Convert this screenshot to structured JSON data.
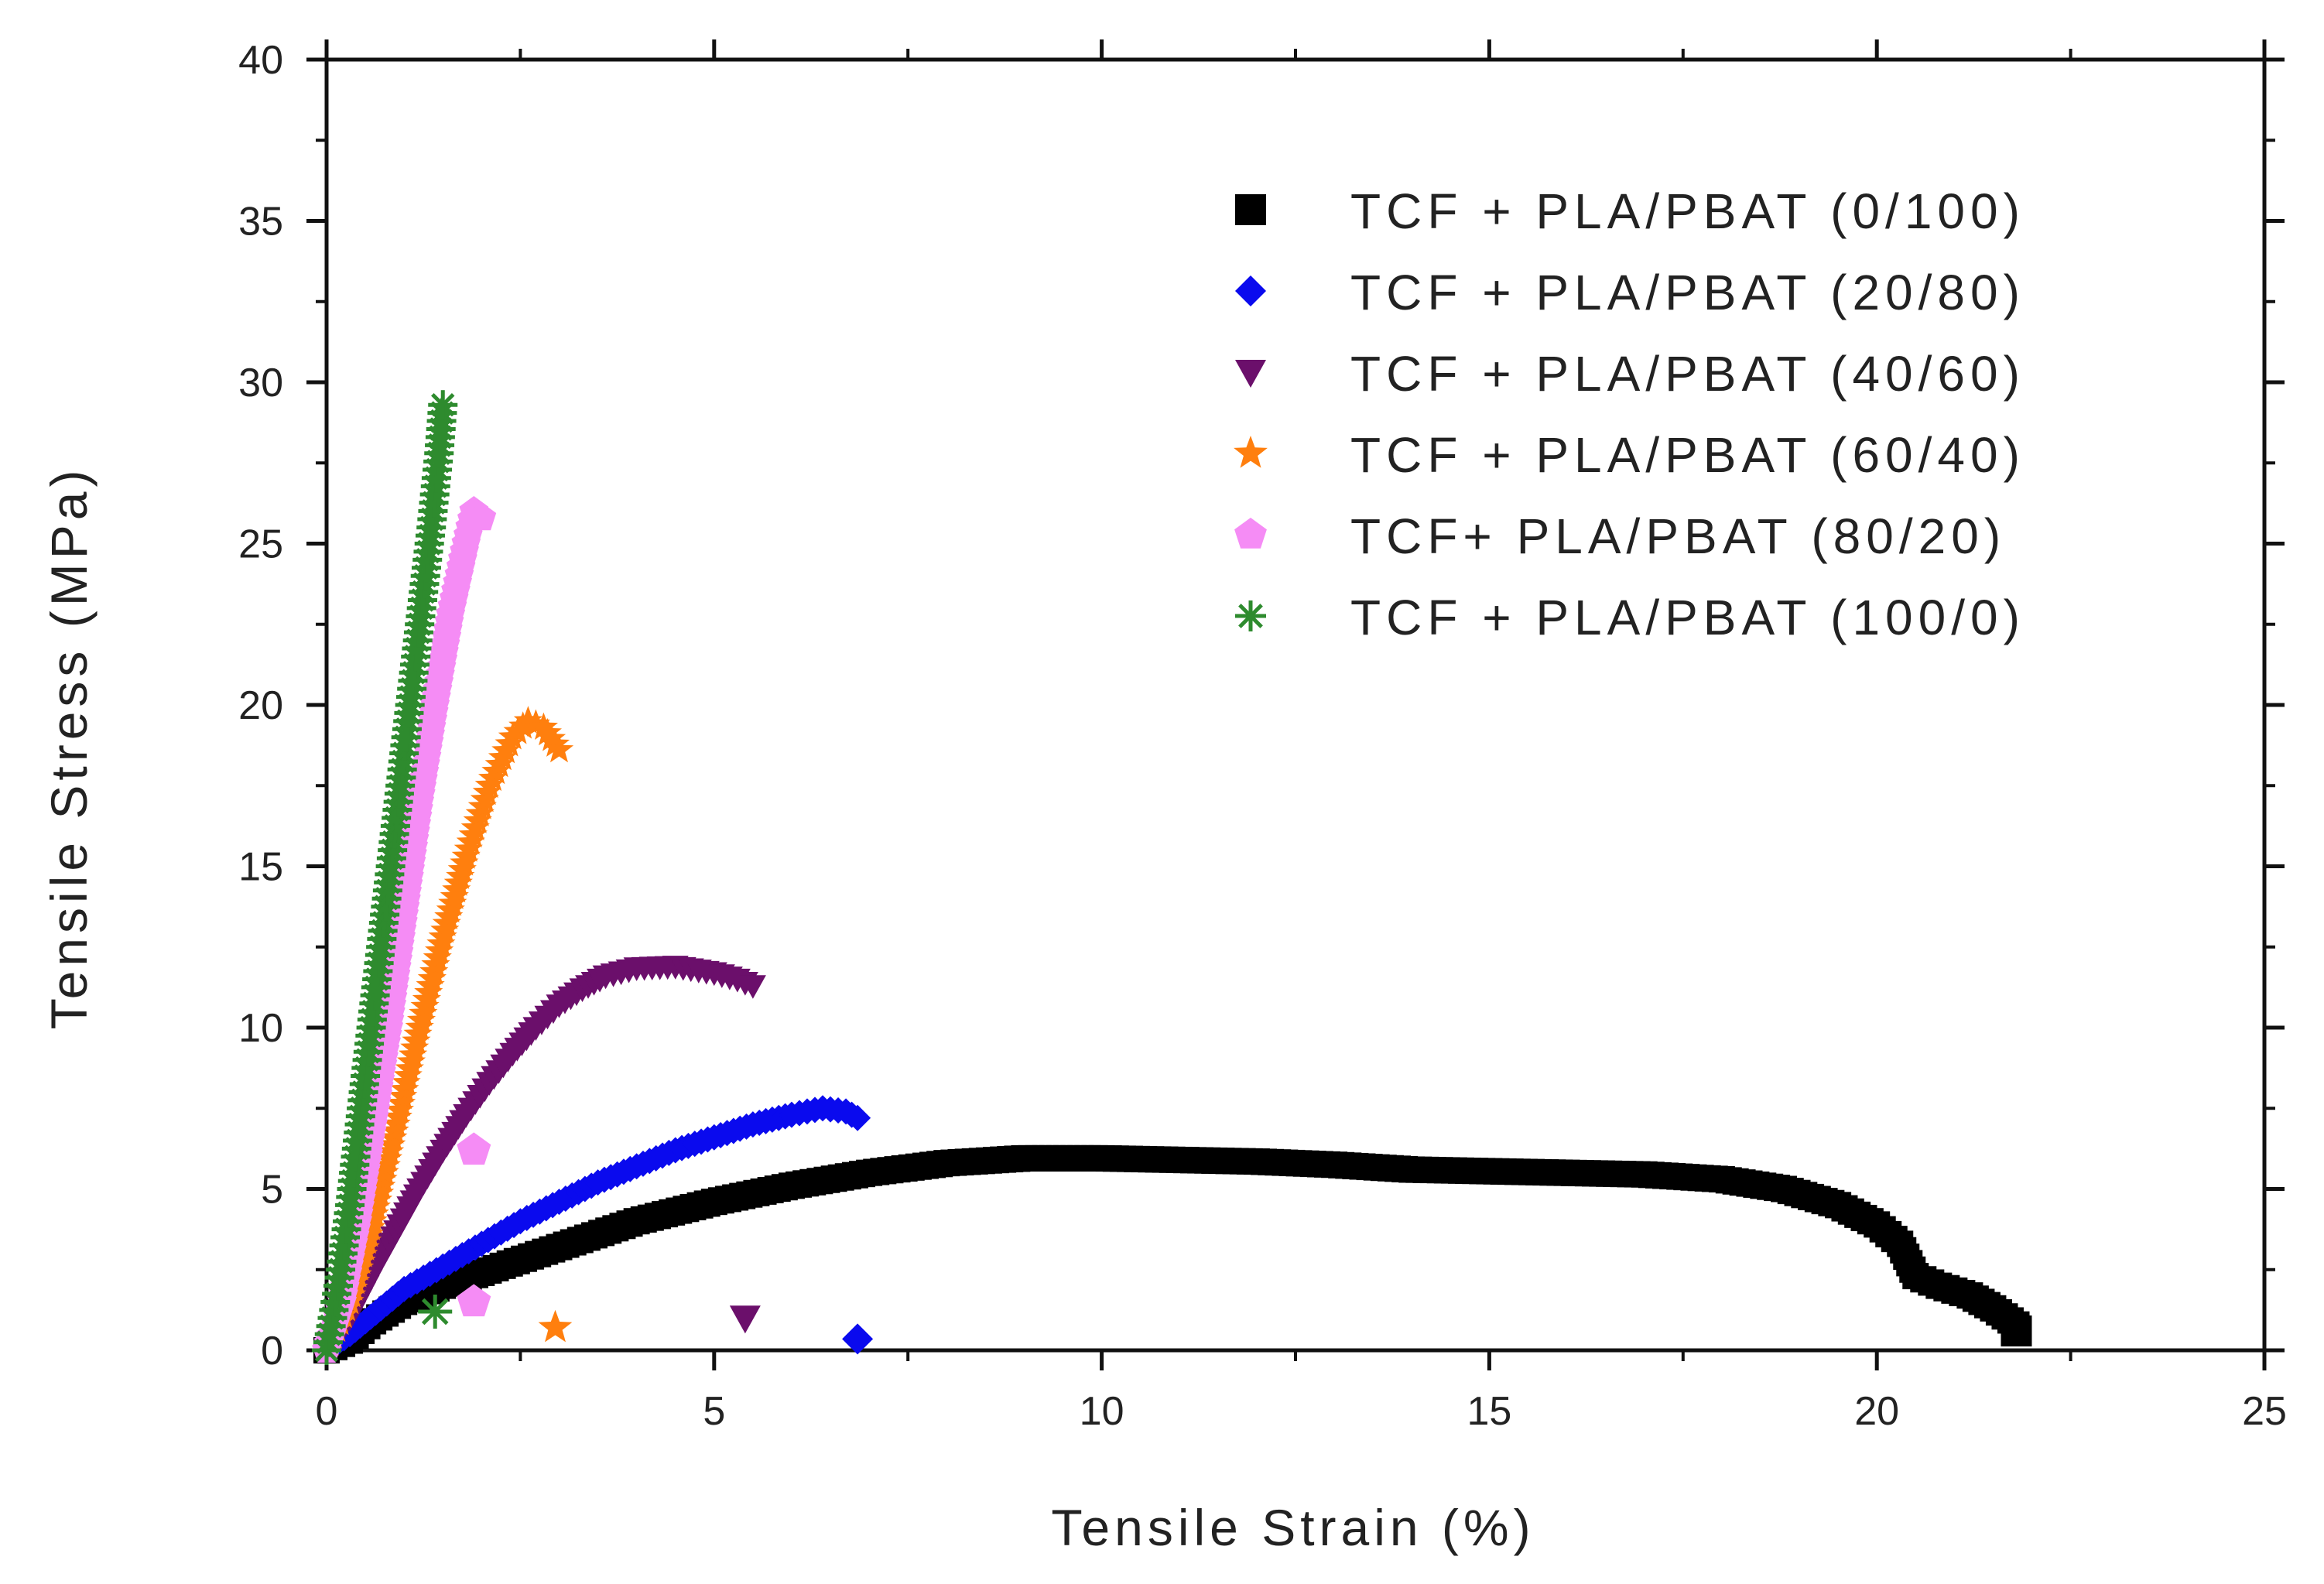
{
  "chart_data": {
    "type": "scatter",
    "title": "",
    "xlabel": "Tensile Strain (%)",
    "ylabel": "Tensile Stress (MPa)",
    "xlim": [
      0,
      25
    ],
    "ylim": [
      0,
      40
    ],
    "xticks": [
      0,
      5,
      10,
      15,
      20,
      25
    ],
    "yticks": [
      0,
      5,
      10,
      15,
      20,
      25,
      30,
      35,
      40
    ],
    "xtick_labels": [
      "0",
      "5",
      "10",
      "15",
      "20",
      "25"
    ],
    "ytick_labels": [
      "0",
      "5",
      "10",
      "15",
      "20",
      "25",
      "30",
      "35",
      "40"
    ],
    "grid": false,
    "legend_position": "top-right",
    "series": [
      {
        "name": "TCF + PLA/PBAT (0/100)",
        "marker": "square",
        "color": "#000000",
        "points": [
          [
            0,
            0
          ],
          [
            0.3,
            0.3
          ],
          [
            0.6,
            0.9
          ],
          [
            1,
            1.5
          ],
          [
            1.5,
            2.0
          ],
          [
            2,
            2.4
          ],
          [
            3,
            3.2
          ],
          [
            4,
            4.0
          ],
          [
            5,
            4.6
          ],
          [
            6,
            5.1
          ],
          [
            7,
            5.5
          ],
          [
            8,
            5.8
          ],
          [
            9,
            5.95
          ],
          [
            10,
            5.95
          ],
          [
            11,
            5.9
          ],
          [
            12,
            5.85
          ],
          [
            13,
            5.75
          ],
          [
            14,
            5.6
          ],
          [
            15,
            5.55
          ],
          [
            16,
            5.5
          ],
          [
            17,
            5.45
          ],
          [
            18,
            5.3
          ],
          [
            18.8,
            5.0
          ],
          [
            19.5,
            4.5
          ],
          [
            20,
            3.9
          ],
          [
            20.3,
            3.3
          ],
          [
            20.5,
            2.3
          ],
          [
            20.8,
            2.0
          ],
          [
            21.2,
            1.7
          ],
          [
            21.5,
            1.3
          ],
          [
            21.8,
            0.8
          ]
        ],
        "break_point": [
          21.8,
          0.6
        ]
      },
      {
        "name": "TCF + PLA/PBAT (20/80)",
        "marker": "diamond",
        "color": "#0a0aee",
        "points": [
          [
            0,
            0
          ],
          [
            0.3,
            0.5
          ],
          [
            0.7,
            1.3
          ],
          [
            1,
            1.9
          ],
          [
            1.5,
            2.6
          ],
          [
            2,
            3.3
          ],
          [
            2.5,
            4.0
          ],
          [
            3,
            4.6
          ],
          [
            3.5,
            5.2
          ],
          [
            4,
            5.7
          ],
          [
            4.5,
            6.2
          ],
          [
            5,
            6.6
          ],
          [
            5.5,
            7.0
          ],
          [
            6,
            7.3
          ],
          [
            6.4,
            7.5
          ],
          [
            6.7,
            7.4
          ],
          [
            6.85,
            7.2
          ]
        ],
        "break_point": [
          6.85,
          0.35
        ]
      },
      {
        "name": "TCF + PLA/PBAT (40/60)",
        "marker": "triangle-down",
        "color": "#6b0f6b",
        "points": [
          [
            0,
            0
          ],
          [
            0.3,
            1.0
          ],
          [
            0.6,
            2.4
          ],
          [
            0.9,
            3.7
          ],
          [
            1.2,
            5.0
          ],
          [
            1.5,
            6.2
          ],
          [
            1.8,
            7.3
          ],
          [
            2.1,
            8.3
          ],
          [
            2.4,
            9.2
          ],
          [
            2.7,
            10.0
          ],
          [
            3,
            10.7
          ],
          [
            3.3,
            11.2
          ],
          [
            3.6,
            11.6
          ],
          [
            4,
            11.85
          ],
          [
            4.5,
            11.9
          ],
          [
            5,
            11.7
          ],
          [
            5.3,
            11.5
          ],
          [
            5.5,
            11.3
          ]
        ],
        "break_point": [
          5.4,
          1.0
        ]
      },
      {
        "name": "TCF + PLA/PBAT (60/40)",
        "marker": "star",
        "color": "#ff7f0e",
        "points": [
          [
            0,
            0
          ],
          [
            0.3,
            1.5
          ],
          [
            0.6,
            4.0
          ],
          [
            0.9,
            7.0
          ],
          [
            1.2,
            10.0
          ],
          [
            1.5,
            12.8
          ],
          [
            1.8,
            15.3
          ],
          [
            2.1,
            17.5
          ],
          [
            2.4,
            19.0
          ],
          [
            2.6,
            19.5
          ],
          [
            2.8,
            19.3
          ],
          [
            3.0,
            18.6
          ]
        ],
        "break_point": [
          2.95,
          0.7
        ]
      },
      {
        "name": "TCF+ PLA/PBAT (80/20)",
        "marker": "pentagon",
        "color": "#f58cf5",
        "points": [
          [
            0,
            0
          ],
          [
            0.2,
            1.5
          ],
          [
            0.4,
            4.0
          ],
          [
            0.6,
            7.0
          ],
          [
            0.8,
            10.0
          ],
          [
            1.0,
            13.5
          ],
          [
            1.2,
            17.0
          ],
          [
            1.4,
            20.0
          ],
          [
            1.6,
            22.8
          ],
          [
            1.8,
            25.0
          ],
          [
            1.9,
            26.0
          ],
          [
            2.0,
            25.8
          ]
        ],
        "break_points": [
          [
            1.9,
            6.2
          ],
          [
            1.9,
            1.5
          ]
        ]
      },
      {
        "name": "TCF + PLA/PBAT (100/0)",
        "marker": "asterisk",
        "color": "#2e8b2e",
        "points": [
          [
            0,
            0
          ],
          [
            0.15,
            2.0
          ],
          [
            0.3,
            4.5
          ],
          [
            0.45,
            7.5
          ],
          [
            0.6,
            10.5
          ],
          [
            0.75,
            13.5
          ],
          [
            0.9,
            16.5
          ],
          [
            1.05,
            19.5
          ],
          [
            1.2,
            22.5
          ],
          [
            1.35,
            25.5
          ],
          [
            1.45,
            27.8
          ],
          [
            1.5,
            29.3
          ]
        ],
        "break_point": [
          1.4,
          1.2
        ]
      }
    ]
  }
}
